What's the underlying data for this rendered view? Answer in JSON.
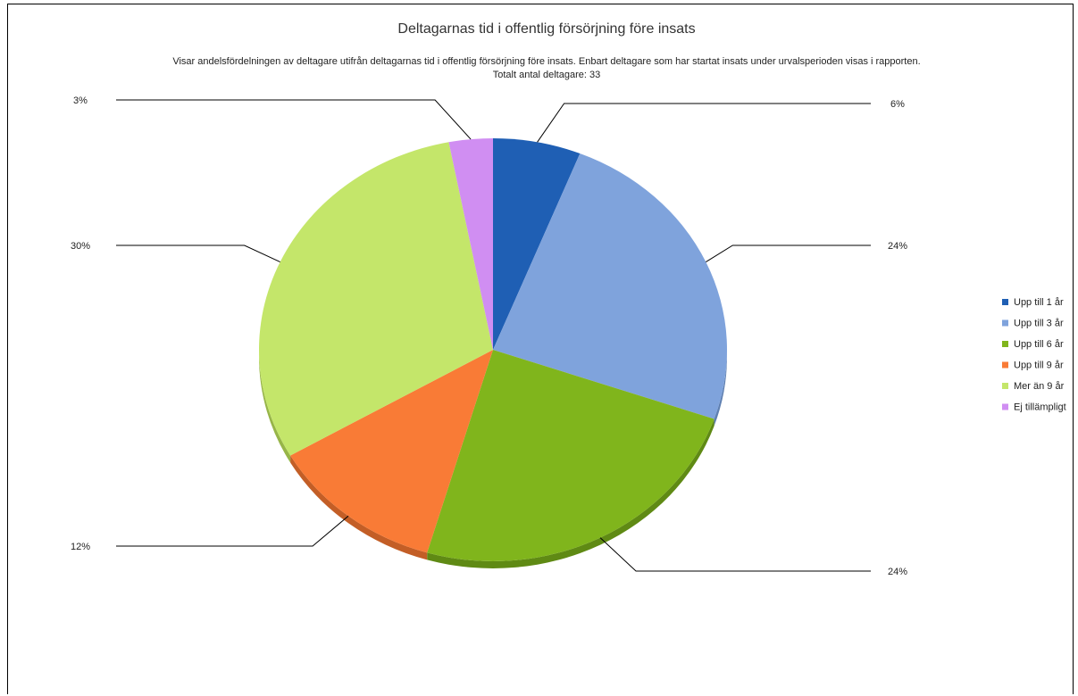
{
  "chart_data": {
    "type": "pie",
    "title": "Deltagarnas tid i offentlig försörjning före insats",
    "subtitle": "Visar andelsfördelningen av deltagare utifrån deltagarnas tid i offentlig försörjning före insats. Enbart deltagare som har startat insats under urvalsperioden visas i rapporten.",
    "subtitle2": "Totalt antal deltagare: 33",
    "categories": [
      "Upp till 1 år",
      "Upp till 3 år",
      "Upp till 6 år",
      "Upp till 9 år",
      "Mer än 9 år",
      "Ej tillämpligt"
    ],
    "values": [
      6,
      24,
      24,
      12,
      30,
      3
    ],
    "counts": [
      2,
      8,
      8,
      4,
      10,
      1
    ],
    "labels": [
      "6%",
      "24%",
      "24%",
      "12%",
      "30%",
      "3%"
    ],
    "colors": [
      "#1f5fb4",
      "#7fa3dc",
      "#80b51c",
      "#f97b36",
      "#c4e66a",
      "#d08ef2"
    ],
    "shadow_colors": [
      "#174a8c",
      "#5e7fb1",
      "#5f8a14",
      "#c35e26",
      "#97b548",
      "#a36bc0"
    ],
    "legend_position": "right"
  }
}
